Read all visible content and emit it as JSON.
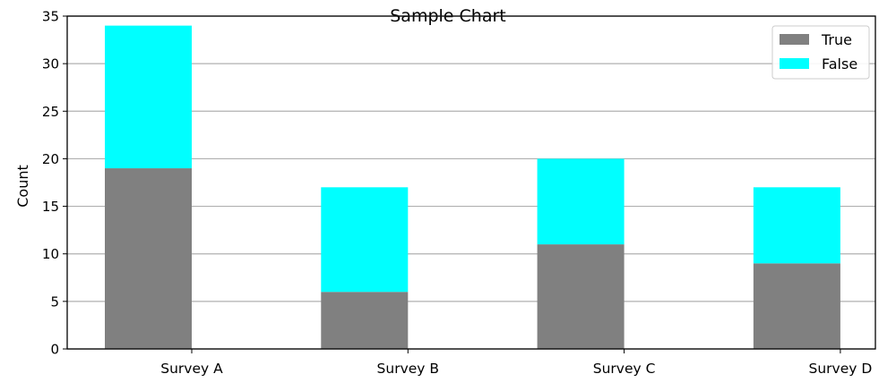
{
  "chart_data": {
    "type": "bar",
    "stacked": true,
    "title": "Sample Chart",
    "xlabel": "",
    "ylabel": "Count",
    "categories": [
      "Survey A",
      "Survey B",
      "Survey C",
      "Survey D"
    ],
    "series": [
      {
        "name": "True",
        "values": [
          19,
          6,
          11,
          9
        ],
        "color": "#808080"
      },
      {
        "name": "False",
        "values": [
          15,
          11,
          9,
          8
        ],
        "color": "#00ffff"
      }
    ],
    "ylim": [
      0,
      35
    ],
    "yticks": [
      0,
      5,
      10,
      15,
      20,
      25,
      30,
      35
    ],
    "grid": "horizontal",
    "legend": "top-right"
  }
}
